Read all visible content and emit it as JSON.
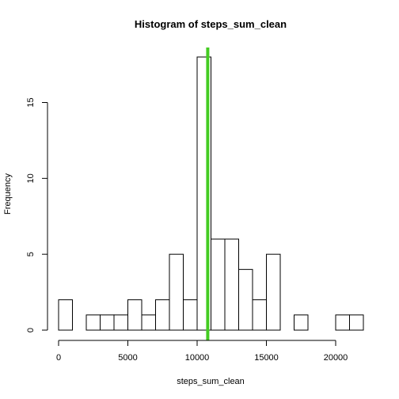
{
  "chart_data": {
    "type": "bar",
    "title": "Histogram of steps_sum_clean",
    "xlabel": "steps_sum_clean",
    "ylabel": "Frequency",
    "bin_width": 1000,
    "bins": [
      {
        "start": 0,
        "end": 1000,
        "count": 2
      },
      {
        "start": 1000,
        "end": 2000,
        "count": 0
      },
      {
        "start": 2000,
        "end": 3000,
        "count": 1
      },
      {
        "start": 3000,
        "end": 4000,
        "count": 1
      },
      {
        "start": 4000,
        "end": 5000,
        "count": 1
      },
      {
        "start": 5000,
        "end": 6000,
        "count": 2
      },
      {
        "start": 6000,
        "end": 7000,
        "count": 1
      },
      {
        "start": 7000,
        "end": 8000,
        "count": 2
      },
      {
        "start": 8000,
        "end": 9000,
        "count": 5
      },
      {
        "start": 9000,
        "end": 10000,
        "count": 2
      },
      {
        "start": 10000,
        "end": 11000,
        "count": 18
      },
      {
        "start": 11000,
        "end": 12000,
        "count": 6
      },
      {
        "start": 12000,
        "end": 13000,
        "count": 6
      },
      {
        "start": 13000,
        "end": 14000,
        "count": 4
      },
      {
        "start": 14000,
        "end": 15000,
        "count": 2
      },
      {
        "start": 15000,
        "end": 16000,
        "count": 5
      },
      {
        "start": 16000,
        "end": 17000,
        "count": 0
      },
      {
        "start": 17000,
        "end": 18000,
        "count": 1
      },
      {
        "start": 18000,
        "end": 19000,
        "count": 0
      },
      {
        "start": 19000,
        "end": 20000,
        "count": 0
      },
      {
        "start": 20000,
        "end": 21000,
        "count": 1
      },
      {
        "start": 21000,
        "end": 22000,
        "count": 1
      }
    ],
    "xlim": [
      0,
      22000
    ],
    "ylim": [
      0,
      18
    ],
    "x_ticks": [
      0,
      5000,
      10000,
      15000,
      20000
    ],
    "y_ticks": [
      0,
      5,
      10,
      15
    ],
    "reference_line": {
      "x": 10766,
      "color": "#44cc22"
    },
    "grid": false
  }
}
